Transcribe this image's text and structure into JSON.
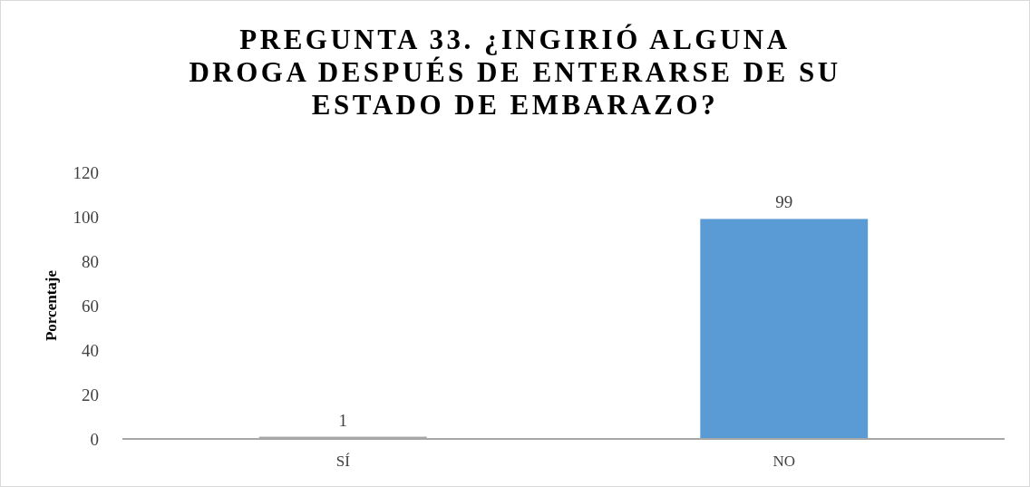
{
  "chart_data": {
    "type": "bar",
    "title": "PREGUNTA 33. ¿INGIRIÓ ALGUNA DROGA DESPUÉS DE ENTERARSE DE SU ESTADO DE EMBARAZO?",
    "ylabel": "Porcentaje",
    "categories": [
      "SÍ",
      "NO"
    ],
    "values": [
      1,
      99
    ],
    "colors": [
      "#a6a6a6",
      "#5b9bd5"
    ],
    "ylim": [
      0,
      120
    ],
    "yticks": [
      0,
      20,
      40,
      60,
      80,
      100,
      120
    ],
    "grid": false,
    "data_labels": true
  }
}
